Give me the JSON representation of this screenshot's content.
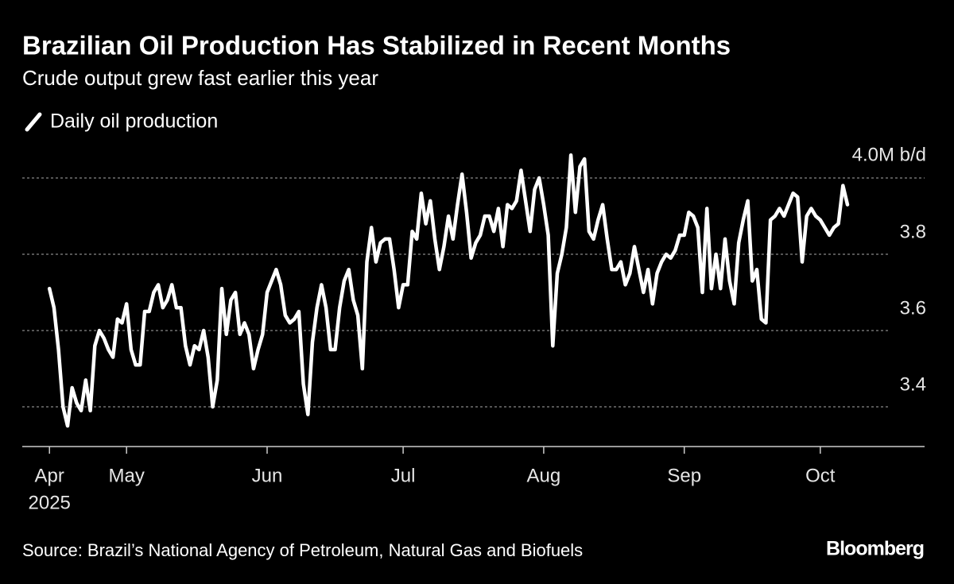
{
  "chart_data": {
    "type": "line",
    "title": "Brazilian Oil Production Has Stabilized in Recent Months",
    "subtitle": "Crude output grew fast earlier this year",
    "source": "Source: Brazil’s National Agency of Petroleum, Natural Gas and Biofuels",
    "brand": "Bloomberg",
    "x_year_label": "2025",
    "xlim": [
      -6,
      193
    ],
    "xticks": [
      {
        "value": 0,
        "label": "Apr"
      },
      {
        "value": 17,
        "label": "May"
      },
      {
        "value": 48,
        "label": "Jun"
      },
      {
        "value": 78,
        "label": "Jul"
      },
      {
        "value": 109,
        "label": "Aug"
      },
      {
        "value": 140,
        "label": "Sep"
      },
      {
        "value": 170,
        "label": "Oct"
      }
    ],
    "ylim": [
      3.3,
      4.1
    ],
    "yticks": [
      3.4,
      3.6,
      3.8,
      {
        "value": 4,
        "label": "4.0M b/d"
      }
    ],
    "grid": true,
    "series": [
      {
        "name": "Daily oil production",
        "color": "#ffffff",
        "values": [
          3.71,
          3.66,
          3.55,
          3.4,
          3.35,
          3.45,
          3.41,
          3.39,
          3.47,
          3.39,
          3.56,
          3.6,
          3.58,
          3.55,
          3.53,
          3.63,
          3.62,
          3.67,
          3.55,
          3.51,
          3.51,
          3.65,
          3.65,
          3.7,
          3.72,
          3.66,
          3.68,
          3.72,
          3.66,
          3.66,
          3.56,
          3.51,
          3.56,
          3.55,
          3.6,
          3.53,
          3.4,
          3.47,
          3.71,
          3.59,
          3.68,
          3.7,
          3.59,
          3.62,
          3.59,
          3.5,
          3.55,
          3.59,
          3.7,
          3.73,
          3.76,
          3.72,
          3.64,
          3.62,
          3.63,
          3.65,
          3.46,
          3.38,
          3.57,
          3.66,
          3.72,
          3.66,
          3.55,
          3.55,
          3.66,
          3.73,
          3.76,
          3.68,
          3.64,
          3.5,
          3.78,
          3.87,
          3.78,
          3.83,
          3.84,
          3.84,
          3.76,
          3.66,
          3.72,
          3.72,
          3.86,
          3.84,
          3.96,
          3.88,
          3.94,
          3.84,
          3.76,
          3.82,
          3.9,
          3.84,
          3.93,
          4.01,
          3.91,
          3.79,
          3.83,
          3.85,
          3.9,
          3.9,
          3.86,
          3.92,
          3.82,
          3.93,
          3.92,
          3.94,
          4.02,
          3.94,
          3.86,
          3.97,
          4.0,
          3.93,
          3.85,
          3.56,
          3.75,
          3.8,
          3.87,
          4.06,
          3.91,
          4.03,
          4.05,
          3.86,
          3.84,
          3.89,
          3.93,
          3.84,
          3.76,
          3.76,
          3.78,
          3.72,
          3.75,
          3.82,
          3.76,
          3.7,
          3.76,
          3.67,
          3.75,
          3.78,
          3.8,
          3.79,
          3.81,
          3.85,
          3.85,
          3.91,
          3.9,
          3.87,
          3.7,
          3.92,
          3.71,
          3.8,
          3.71,
          3.84,
          3.73,
          3.67,
          3.83,
          3.89,
          3.94,
          3.73,
          3.76,
          3.63,
          3.62,
          3.89,
          3.9,
          3.92,
          3.9,
          3.93,
          3.96,
          3.95,
          3.78,
          3.9,
          3.92,
          3.9,
          3.89,
          3.87,
          3.85,
          3.87,
          3.88,
          3.98,
          3.93
        ]
      }
    ]
  }
}
